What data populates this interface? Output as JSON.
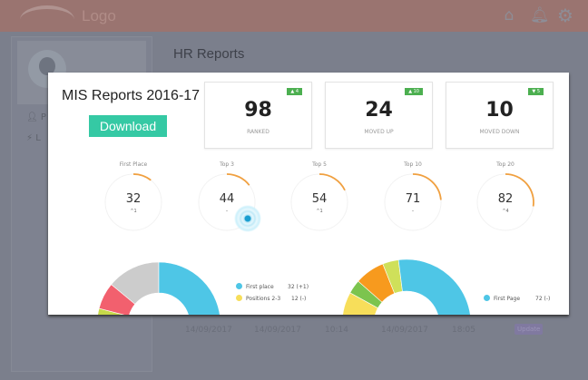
{
  "header": {
    "logo": "Logo",
    "icons": [
      "home-icon",
      "bell-icon",
      "gear-icon"
    ]
  },
  "sidebar": {
    "items": [
      {
        "label": "P",
        "icon": "user-icon"
      },
      {
        "label": "L",
        "icon": "bolt-icon"
      }
    ]
  },
  "page": {
    "title": "HR Reports",
    "row": [
      "14/09/2017",
      "14/09/2017",
      "10:14",
      "14/09/2017",
      "18:05"
    ],
    "row_badge": "Update"
  },
  "modal": {
    "title": "MIS Reports 2016-17",
    "download_label": "Download",
    "cards": [
      {
        "value": "98",
        "label": "RANKED",
        "badge": "4",
        "trend": "up"
      },
      {
        "value": "24",
        "label": "MOVED UP",
        "badge": "10",
        "trend": "up"
      },
      {
        "value": "10",
        "label": "MOVED DOWN",
        "badge": "5",
        "trend": "down"
      }
    ],
    "gauges": [
      {
        "label": "First Place",
        "value": 32,
        "change": "^1"
      },
      {
        "label": "Top 3",
        "value": 44,
        "change": "–"
      },
      {
        "label": "Top 5",
        "value": 54,
        "change": "^1"
      },
      {
        "label": "Top 10",
        "value": 71,
        "change": "–"
      },
      {
        "label": "Top 20",
        "value": 82,
        "change": "^4"
      }
    ],
    "donut_left": {
      "segments": [
        {
          "color": "#c6d84a",
          "value": 8
        },
        {
          "color": "#f2606e",
          "value": 14
        },
        {
          "color": "#cccccc",
          "value": 28
        },
        {
          "color": "#4ec6e6",
          "value": 50
        }
      ],
      "legend": [
        {
          "name": "First place",
          "value": "32 (+1)",
          "color": "#4ec6e6"
        },
        {
          "name": "Positions 2-3",
          "value": "12 (-)",
          "color": "#f7de5a"
        }
      ]
    },
    "donut_right": {
      "segments": [
        {
          "color": "#f7de5a",
          "value": 16
        },
        {
          "color": "#7cc44e",
          "value": 7
        },
        {
          "color": "#f79a1e",
          "value": 15
        },
        {
          "color": "#cfe05a",
          "value": 8
        },
        {
          "color": "#4ec6e6",
          "value": 54
        }
      ],
      "legend": [
        {
          "name": "First Page",
          "value": "72 (-)",
          "color": "#4ec6e6"
        }
      ]
    },
    "accent": "#35c9a4",
    "gauge_color": "#f0a040"
  }
}
